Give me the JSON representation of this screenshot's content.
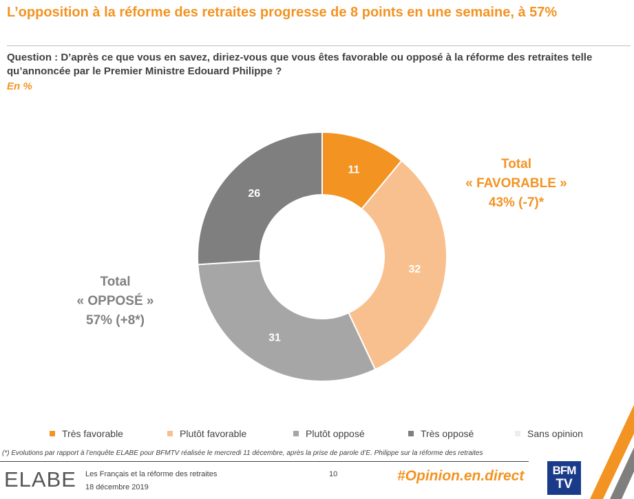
{
  "title": "L’opposition à la réforme des retraites progresse de 8 points en une semaine, à 57%",
  "question": "Question : D’après ce que vous en savez, diriez-vous que vous êtes favorable ou opposé à la réforme des retraites telle qu’annoncée par le Premier Ministre Edouard Philippe ?",
  "unit": "En %",
  "chart_data": {
    "type": "pie",
    "categories": [
      "Très favorable",
      "Plutôt favorable",
      "Plutôt opposé",
      "Très opposé",
      "Sans opinion"
    ],
    "values": [
      11,
      32,
      31,
      26,
      0
    ],
    "labels": [
      "11",
      "32",
      "31",
      "26",
      ""
    ],
    "colors": [
      "#F39322",
      "#F8C08E",
      "#A6A6A6",
      "#7F7F7F",
      "#EDEDED"
    ],
    "legend_position": "bottom",
    "annotations": {
      "favorable": [
        "Total",
        "« FAVORABLE »",
        "43% (-7)*"
      ],
      "oppose": [
        "Total",
        "« OPPOSÉ »",
        "57% (+8*)"
      ]
    }
  },
  "footnote": "(*) Evolutions par rapport à l’enquête ELABE pour BFMTV réalisée le mercredi 11 décembre, après la prise de parole d’E. Philippe sur la réforme des retraites",
  "footer": {
    "logo": "ELABE",
    "subject": "Les Français et la réforme des retraites",
    "date": "18 décembre 2019",
    "page": "10",
    "hashtag": "#Opinion.en.direct",
    "bfm_line1": "BFM",
    "bfm_line2": "TV"
  }
}
